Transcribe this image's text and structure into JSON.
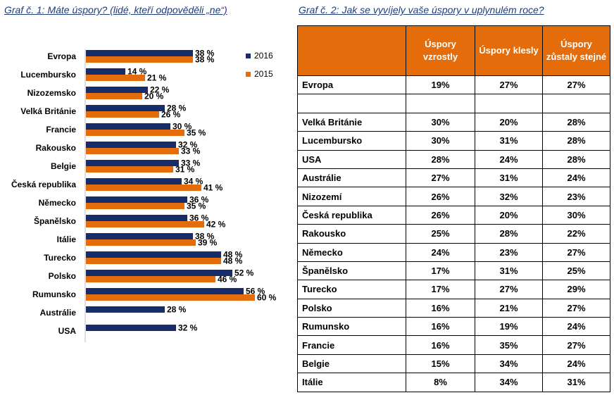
{
  "chart_title": "Graf č. 1: Máte úspory? (lidé, kteří odpověděli „ne“)",
  "table_title": "Graf č. 2: Jak se vyvíjely vaše úspory v uplynulém roce?",
  "chart_data": {
    "type": "bar",
    "orientation": "horizontal",
    "title": "Graf č. 1: Máte úspory? (lidé, kteří odpověděli „ne“)",
    "categories": [
      "Evropa",
      "Lucembursko",
      "Nizozemsko",
      "Velká Británie",
      "Francie",
      "Rakousko",
      "Belgie",
      "Česká republika",
      "Německo",
      "Španělsko",
      "Itálie",
      "Turecko",
      "Polsko",
      "Rumunsko",
      "Austrálie",
      "USA"
    ],
    "series": [
      {
        "name": "2016",
        "color": "#172d6b",
        "values": [
          38,
          14,
          22,
          28,
          30,
          32,
          33,
          34,
          36,
          36,
          38,
          48,
          52,
          56,
          28,
          32
        ]
      },
      {
        "name": "2015",
        "color": "#e46c0a",
        "values": [
          38,
          21,
          20,
          26,
          35,
          33,
          31,
          41,
          35,
          42,
          39,
          48,
          46,
          60,
          null,
          null
        ]
      }
    ],
    "value_suffix": " %",
    "xlim": [
      0,
      65
    ],
    "grid": false,
    "legend_position": "top-right"
  },
  "table": {
    "headers": [
      "",
      "Úspory vzrostly",
      "Úspory klesly",
      "Úspory zůstaly stejné"
    ],
    "rows": [
      {
        "country": "Evropa",
        "values": [
          "19%",
          "27%",
          "27%"
        ]
      },
      {
        "country": "",
        "values": [
          "",
          "",
          ""
        ]
      },
      {
        "country": "Velká Británie",
        "values": [
          "30%",
          "20%",
          "28%"
        ]
      },
      {
        "country": "Lucembursko",
        "values": [
          "30%",
          "31%",
          "28%"
        ]
      },
      {
        "country": "USA",
        "values": [
          "28%",
          "24%",
          "28%"
        ]
      },
      {
        "country": "Austrálie",
        "values": [
          "27%",
          "31%",
          "24%"
        ]
      },
      {
        "country": "Nizozemí",
        "values": [
          "26%",
          "32%",
          "23%"
        ]
      },
      {
        "country": "Česká republika",
        "values": [
          "26%",
          "20%",
          "30%"
        ]
      },
      {
        "country": "Rakousko",
        "values": [
          "25%",
          "28%",
          "22%"
        ]
      },
      {
        "country": "Německo",
        "values": [
          "24%",
          "23%",
          "27%"
        ]
      },
      {
        "country": "Španělsko",
        "values": [
          "17%",
          "31%",
          "25%"
        ]
      },
      {
        "country": "Turecko",
        "values": [
          "17%",
          "27%",
          "29%"
        ]
      },
      {
        "country": "Polsko",
        "values": [
          "16%",
          "21%",
          "27%"
        ]
      },
      {
        "country": "Rumunsko",
        "values": [
          "16%",
          "19%",
          "24%"
        ]
      },
      {
        "country": "Francie",
        "values": [
          "16%",
          "35%",
          "27%"
        ]
      },
      {
        "country": "Belgie",
        "values": [
          "15%",
          "34%",
          "24%"
        ]
      },
      {
        "country": "Itálie",
        "values": [
          "8%",
          "34%",
          "31%"
        ]
      }
    ]
  }
}
